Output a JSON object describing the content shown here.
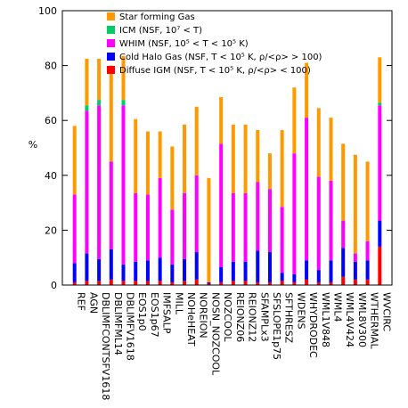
{
  "chart_data": {
    "type": "bar",
    "stacked": true,
    "ylabel": "%",
    "ylim": [
      0,
      100
    ],
    "yticks": [
      0,
      20,
      40,
      60,
      80,
      100
    ],
    "categories": [
      "REF",
      "AGN",
      "DBLIMFCONTSFV1618",
      "DBLIMFML14",
      "DBLIMFV1618",
      "EOS1p0",
      "EOS1p67",
      "IMFSALP",
      "MILL",
      "NOHeHEAT",
      "NOREION",
      "NOSN_NOZCOOL",
      "NOZCOOL",
      "REIONZ06",
      "REIONZ12",
      "SFAMPLx3",
      "SFSLOPE1p75",
      "SFTHRESZ",
      "WDENS",
      "WHYDRODEC",
      "WML1V848",
      "WML4",
      "WML4V424",
      "WML8V300",
      "WTHERMAL",
      "WVCIRC"
    ],
    "series": [
      {
        "name": "Diffuse IGM (NSF, T < 10⁵ K, ρ/<ρ> < 100)",
        "color": "#ff0000",
        "values": [
          1,
          1.5,
          1.5,
          2,
          1.5,
          1.5,
          1.5,
          1.5,
          1,
          1.5,
          2,
          0.5,
          1,
          1.5,
          1.5,
          1,
          1,
          1.5,
          1,
          2,
          1,
          1,
          3,
          2,
          2,
          14
        ]
      },
      {
        "name": "Cold Halo Gas (NSF, T < 10⁵ K, ρ/<ρ> > 100)",
        "color": "#0000ff",
        "values": [
          7,
          10,
          8,
          11,
          6,
          7,
          7.5,
          8.5,
          6.5,
          8,
          10,
          0.5,
          5.5,
          7,
          7,
          11.5,
          11,
          3,
          3,
          7,
          4.5,
          8,
          10.5,
          6.5,
          7,
          9.5
        ]
      },
      {
        "name": "WHIM (NSF, 10⁵ < T < 10⁵ K)",
        "color": "#ff00ff",
        "values": [
          25,
          52,
          56,
          32,
          58,
          25,
          24,
          29,
          20,
          24,
          28,
          0,
          45,
          25,
          25,
          25,
          23,
          24,
          44,
          52,
          34,
          29,
          10,
          3,
          7,
          42
        ]
      },
      {
        "name": "ICM (NSF, 10⁷ < T)",
        "color": "#00cc66",
        "values": [
          0,
          2,
          2,
          0,
          2,
          0,
          0,
          0,
          0,
          0,
          0,
          0,
          0,
          0,
          0,
          0,
          0,
          0,
          0,
          0,
          0,
          0,
          0,
          0,
          0,
          1
        ]
      },
      {
        "name": "Star forming Gas",
        "color": "#ff9900",
        "values": [
          25,
          17,
          15,
          35,
          16,
          27,
          23,
          17,
          23,
          25,
          25,
          38,
          17,
          25,
          25,
          19,
          13,
          28,
          24,
          20,
          25,
          23,
          28,
          36,
          29,
          16.5
        ]
      }
    ],
    "legend": {
      "position": "top-left",
      "items": [
        {
          "label": "Star forming Gas",
          "color": "#ff9900"
        },
        {
          "label": "ICM (NSF, 10⁷ < T)",
          "color": "#00cc66"
        },
        {
          "label": "WHIM (NSF, 10⁵ < T < 10⁵ K)",
          "color": "#ff00ff"
        },
        {
          "label": "Cold Halo Gas (NSF, T < 10⁵ K, ρ/<ρ> > 100)",
          "color": "#0000ff"
        },
        {
          "label": "Diffuse IGM (NSF, T < 10⁵ K, ρ/<ρ> < 100)",
          "color": "#ff0000"
        }
      ]
    }
  }
}
